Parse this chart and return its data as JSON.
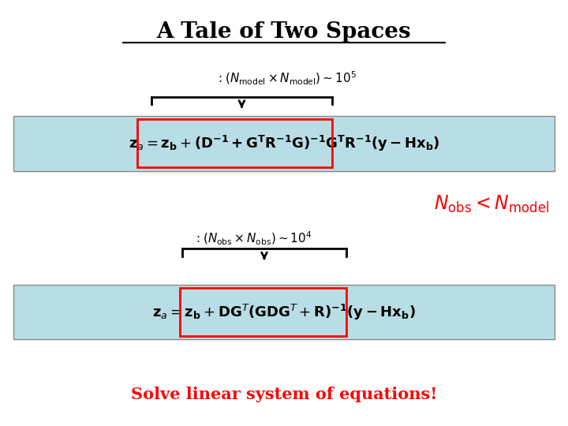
{
  "title": "A Tale of Two Spaces",
  "title_fontsize": 20,
  "bg_color": "#ffffff",
  "box_facecolor": "#b8dde4",
  "box_edgecolor": "#888888",
  "red_color": "#ff0000",
  "solve_text": "Solve linear system of equations!",
  "solve_color": "#ff0000",
  "solve_fontsize": 15,
  "bracket_color": "#000000",
  "bracket_lw": 2.0
}
